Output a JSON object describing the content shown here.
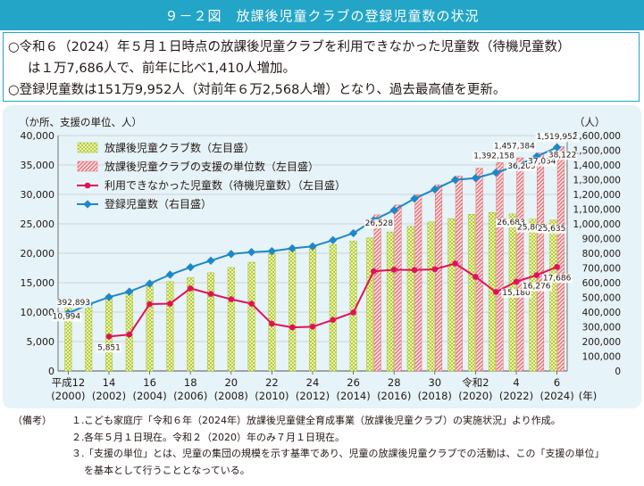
{
  "title": "９－２図　放課後児童クラブの登録児童数の状況",
  "summary": {
    "line1": "○令和６（2024）年５月１日時点の放課後児童クラブを利用できなかった児童数（待機児童数）",
    "line2": "は１万7,686人で、前年に比べ1,410人増加。",
    "line3": "○登録児童数は151万9,952人（対前年６万2,568人増）となり、過去最高値を更新。"
  },
  "notes": {
    "label": "（備考）",
    "items": [
      {
        "num": "１.",
        "text": "こども家庭庁「令和６年（2024年）放課後児童健全育成事業（放課後児童クラブ）の実施状況」より作成。"
      },
      {
        "num": "２.",
        "text": "各年５月１日現在。令和２（2020）年のみ７月１日現在。"
      },
      {
        "num": "３.",
        "text": "「支援の単位」とは、児童の集団の規模を示す基準であり、児童の放課後児童クラブでの活動は、この「支援の単位」"
      }
    ],
    "cont": "を基本として行うこととなっている。"
  },
  "chart_data": {
    "type": "bar+line",
    "left_axis_label": "（か所、支援の単位、人）",
    "right_axis_label": "（人）",
    "x_unit": "(年)",
    "years": [
      2000,
      2001,
      2002,
      2003,
      2004,
      2005,
      2006,
      2007,
      2008,
      2009,
      2010,
      2011,
      2012,
      2013,
      2014,
      2015,
      2016,
      2017,
      2018,
      2019,
      2020,
      2021,
      2022,
      2023,
      2024
    ],
    "x_tick_labels": [
      {
        "top": "平成12",
        "bottom": "(2000)"
      },
      {
        "top": "14",
        "bottom": "(2002)"
      },
      {
        "top": "16",
        "bottom": "(2004)"
      },
      {
        "top": "18",
        "bottom": "(2006)"
      },
      {
        "top": "20",
        "bottom": "(2008)"
      },
      {
        "top": "22",
        "bottom": "(2010)"
      },
      {
        "top": "24",
        "bottom": "(2012)"
      },
      {
        "top": "26",
        "bottom": "(2014)"
      },
      {
        "top": "28",
        "bottom": "(2016)"
      },
      {
        "top": "30",
        "bottom": "(2018)"
      },
      {
        "top": "令和2",
        "bottom": "(2020)"
      },
      {
        "top": "4",
        "bottom": "(2022)"
      },
      {
        "top": "6",
        "bottom": "(2024)"
      }
    ],
    "left_axis": {
      "min": 0,
      "max": 40000,
      "ticks": [
        "0",
        "5,000",
        "10,000",
        "15,000",
        "20,000",
        "25,000",
        "30,000",
        "35,000",
        "40,000"
      ]
    },
    "right_axis": {
      "min": 0,
      "max": 1600000,
      "ticks": [
        "0",
        "100,000",
        "200,000",
        "300,000",
        "400,000",
        "500,000",
        "600,000",
        "700,000",
        "800,000",
        "900,000",
        "1,000,000",
        "1,100,000",
        "1,200,000",
        "1,300,000",
        "1,400,000",
        "1,500,000",
        "1,600,000"
      ]
    },
    "series": [
      {
        "name": "放課後児童クラブ数（左目盛）",
        "kind": "bar-dots",
        "color": "#c6d93a",
        "values": [
          10994,
          11803,
          12825,
          13698,
          14457,
          15184,
          15857,
          16685,
          17583,
          18479,
          19946,
          20561,
          21085,
          21482,
          22084,
          22608,
          23619,
          24573,
          25328,
          25881,
          26625,
          26925,
          26683,
          25807,
          25635
        ]
      },
      {
        "name": "放課後児童クラブの支援の単位数（左目盛）",
        "kind": "bar-hatch",
        "color": "#e6676e",
        "values": [
          null,
          null,
          null,
          null,
          null,
          null,
          null,
          null,
          null,
          null,
          null,
          null,
          null,
          null,
          null,
          26528,
          28198,
          29948,
          31643,
          33090,
          34437,
          35398,
          36209,
          37034,
          38122
        ]
      },
      {
        "name": "利用できなかった児童数（待機児童数）（左目盛）",
        "kind": "line",
        "color": "#e2105a",
        "values": [
          null,
          null,
          5851,
          6180,
          11360,
          11438,
          14029,
          13096,
          12189,
          11438,
          8021,
          7408,
          7521,
          8689,
          9945,
          16941,
          17203,
          17170,
          17279,
          18261,
          15995,
          13416,
          15180,
          16276,
          17686
        ]
      },
      {
        "name": "登録児童数（右目盛）",
        "kind": "line-right",
        "color": "#1e87c8",
        "values": [
          392893,
          452135,
          502041,
          538892,
          593764,
          654823,
          704920,
          749478,
          794922,
          807857,
          814439,
          833038,
          846967,
          889205,
          936452,
          1024635,
          1093085,
          1171162,
          1234366,
          1299307,
          1311008,
          1348275,
          1392158,
          1457384,
          1519952
        ]
      }
    ],
    "data_labels": [
      {
        "series": 3,
        "index": 0,
        "text": "392,893"
      },
      {
        "series": 0,
        "index": 0,
        "text": "10,994"
      },
      {
        "series": 2,
        "index": 2,
        "text": "5,851"
      },
      {
        "series": 1,
        "index": 15,
        "text": "26,528"
      },
      {
        "series": 3,
        "index": 22,
        "text": "1,392,158"
      },
      {
        "series": 1,
        "index": 22,
        "text": "36,209"
      },
      {
        "series": 0,
        "index": 22,
        "text": "26,683"
      },
      {
        "series": 2,
        "index": 22,
        "text": "15,180"
      },
      {
        "series": 3,
        "index": 23,
        "text": "1,457,384"
      },
      {
        "series": 1,
        "index": 23,
        "text": "37,034"
      },
      {
        "series": 0,
        "index": 23,
        "text": "25,807"
      },
      {
        "series": 2,
        "index": 23,
        "text": "16,276"
      },
      {
        "series": 3,
        "index": 24,
        "text": "1,519,952"
      },
      {
        "series": 1,
        "index": 24,
        "text": "38,122"
      },
      {
        "series": 0,
        "index": 24,
        "text": "25,635"
      },
      {
        "series": 2,
        "index": 24,
        "text": "17,686"
      }
    ],
    "legend_position": "top-left"
  }
}
